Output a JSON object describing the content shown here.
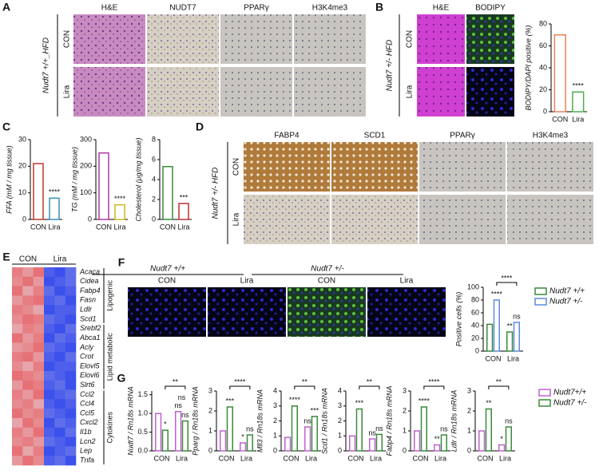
{
  "figure": {
    "A": {
      "label": "A",
      "row_title": "Nudt7 +/+_HFD",
      "columns": [
        "H&E",
        "NUDT7",
        "PPARγ",
        "H3K4me3"
      ],
      "rows": [
        "CON",
        "Lira"
      ]
    },
    "B": {
      "label": "B",
      "row_title": "Nudt7 +/- HFD",
      "columns": [
        "H&E",
        "BODIPY"
      ],
      "rows": [
        "CON",
        "Lira"
      ]
    },
    "C": {
      "label": "C"
    },
    "D": {
      "label": "D",
      "row_title": "Nudt7 +/- HFD",
      "columns": [
        "FABP4",
        "SCD1",
        "PPARγ",
        "H3K4me3"
      ],
      "rows": [
        "CON",
        "Lira"
      ]
    },
    "E": {
      "label": "E",
      "groups": [
        "CON",
        "Lira"
      ],
      "genes": [
        "Acaca",
        "Cidea",
        "Fabp4",
        "Fasn",
        "Ldlr",
        "Scd1",
        "Srebf2",
        "Abca1",
        "Acly",
        "Crot",
        "Elovl5",
        "Elovl6",
        "Slrt6",
        "Ccl2",
        "Ccl4",
        "Ccl5",
        "Cxcl2",
        "Il1b",
        "Lcn2",
        "Lep",
        "Tnfa"
      ],
      "categories": [
        "Lipogenic",
        "Lipid metabolic",
        "Cytokines"
      ],
      "values": [
        [
          0.8,
          0.6,
          0.9,
          -0.9,
          -1,
          -0.8
        ],
        [
          0.7,
          0.9,
          0.6,
          -1,
          -0.9,
          -0.8
        ],
        [
          0.9,
          0.5,
          0.8,
          -0.8,
          -1,
          -0.9
        ],
        [
          0.6,
          0.8,
          0.9,
          -0.9,
          -0.8,
          -1
        ],
        [
          0.8,
          0.7,
          0.5,
          -1,
          -0.9,
          -0.9
        ],
        [
          0.7,
          0.9,
          0.8,
          -0.8,
          -0.9,
          -1
        ],
        [
          0.5,
          0.8,
          0.7,
          -0.9,
          -1,
          -0.8
        ],
        [
          0.9,
          0.6,
          0.8,
          -1,
          -0.8,
          -0.9
        ],
        [
          0.6,
          0.7,
          0.9,
          -0.8,
          -0.9,
          -1
        ],
        [
          0.8,
          0.9,
          0.6,
          -0.9,
          -1,
          -0.8
        ],
        [
          0.7,
          0.5,
          0.8,
          -1,
          -0.9,
          -0.9
        ],
        [
          0.9,
          0.8,
          0.7,
          -0.8,
          -0.9,
          -1
        ],
        [
          0.6,
          0.9,
          0.8,
          -0.9,
          -0.8,
          -1
        ],
        [
          0.8,
          0.6,
          0.9,
          -1,
          -0.9,
          -0.8
        ],
        [
          0.7,
          0.8,
          0.5,
          -0.9,
          -1,
          -0.9
        ],
        [
          0.9,
          0.7,
          0.8,
          -0.8,
          -0.9,
          -1
        ],
        [
          0.5,
          0.9,
          0.7,
          -1,
          -0.8,
          -0.9
        ],
        [
          0.8,
          0.6,
          0.9,
          -0.9,
          -1,
          -0.8
        ],
        [
          0.7,
          0.8,
          0.6,
          -0.8,
          -0.9,
          -1
        ],
        [
          0.9,
          0.5,
          0.8,
          -1,
          -0.9,
          -0.8
        ],
        [
          0.6,
          0.9,
          0.7,
          -0.9,
          -0.8,
          -1
        ]
      ]
    },
    "F": {
      "label": "F",
      "genotypes": [
        "Nudt7 +/+",
        "Nudt7 +/-"
      ],
      "columns": [
        "CON",
        "Lira",
        "CON",
        "Lira"
      ]
    },
    "G": {
      "label": "G"
    }
  },
  "chart_data": [
    {
      "type": "bar",
      "ylabel": "BODIPY/DAPI positive (%)",
      "categories": [
        "CON",
        "Lira"
      ],
      "ylim": [
        0,
        80
      ],
      "yticks": [
        0,
        20,
        40,
        60,
        80
      ],
      "series": [
        {
          "values": [
            70,
            18
          ],
          "colors": [
            "#e8825a",
            "#4caf50"
          ]
        }
      ],
      "sig": {
        "last": "****"
      }
    },
    {
      "type": "bar",
      "ylabel": "FFA (mM / mg tissue)",
      "categories": [
        "CON",
        "Lira"
      ],
      "ylim": [
        0,
        30
      ],
      "yticks": [
        0,
        10,
        20,
        30
      ],
      "series": [
        {
          "values": [
            21,
            8
          ],
          "colors": [
            "#c0392b",
            "#3a8fb7"
          ]
        }
      ],
      "sig": {
        "last": "****"
      }
    },
    {
      "type": "bar",
      "ylabel": "TG (mM / mg tissue)",
      "categories": [
        "CON",
        "Lira"
      ],
      "ylim": [
        0,
        300
      ],
      "yticks": [
        0,
        100,
        200,
        300
      ],
      "series": [
        {
          "values": [
            250,
            55
          ],
          "colors": [
            "#b03aa0",
            "#c8b820"
          ]
        }
      ],
      "sig": {
        "last": "****"
      }
    },
    {
      "type": "bar",
      "ylabel": "Cholesterol (μg/mg tissue)",
      "categories": [
        "CON",
        "Lira"
      ],
      "ylim": [
        0,
        8
      ],
      "yticks": [
        0,
        2,
        4,
        6,
        8
      ],
      "series": [
        {
          "values": [
            5.3,
            1.6
          ],
          "colors": [
            "#3a8a3a",
            "#c03030"
          ]
        }
      ],
      "sig": {
        "last": "***"
      }
    },
    {
      "type": "bar",
      "ylabel": "Positive cells (%)",
      "categories": [
        "CON",
        "Lira"
      ],
      "ylim": [
        0,
        100
      ],
      "yticks": [
        0,
        20,
        40,
        60,
        80,
        100
      ],
      "series": [
        {
          "name": "Nudt7 +/+",
          "color": "#3a8a3a",
          "values": [
            42,
            30
          ]
        },
        {
          "name": "Nudt7 +/-",
          "color": "#5a8ae0",
          "values": [
            80,
            45
          ]
        }
      ],
      "sig": {
        "con_het": "****",
        "lira_wt": "**",
        "lira_het": "ns",
        "top": "****"
      }
    },
    {
      "type": "bar",
      "ylabel": "Nudt7 / Rn18s mRNA",
      "categories": [
        "CON",
        "Lira"
      ],
      "ylim": [
        0,
        1.6
      ],
      "yticks": [
        {
          "value": 0,
          "label": "0.0"
        },
        0.5,
        {
          "value": 1,
          "label": "1.0"
        },
        1.5
      ],
      "series": [
        {
          "name": "Nudt7+/+",
          "color": "#c060d0",
          "values": [
            1.0,
            1.05
          ]
        },
        {
          "name": "Nudt7 +/-",
          "color": "#3a8a3a",
          "values": [
            0.55,
            0.8
          ]
        }
      ],
      "sig": {
        "con_het": "*",
        "lira_wt": "ns",
        "lira_het": "ns",
        "between": "ns",
        "top": "**"
      }
    },
    {
      "type": "bar",
      "ylabel": "Pparg / Rn18s mRNA",
      "categories": [
        "CON",
        "Lira"
      ],
      "ylim": [
        0,
        3
      ],
      "yticks": [
        0,
        1,
        2,
        3
      ],
      "series": [
        {
          "color": "#c060d0",
          "values": [
            1.0,
            0.4
          ]
        },
        {
          "color": "#3a8a3a",
          "values": [
            2.2,
            0.8
          ]
        }
      ],
      "sig": {
        "con_het": "***",
        "lira_wt": "*",
        "lira_het": "ns",
        "top": "****"
      }
    },
    {
      "type": "bar",
      "ylabel": "Mll3 / Rn18s mRNA",
      "categories": [
        "CON",
        "Lira"
      ],
      "ylim": [
        0,
        4
      ],
      "yticks": [
        0,
        1,
        2,
        3,
        4
      ],
      "series": [
        {
          "color": "#c060d0",
          "values": [
            0.9,
            1.6
          ]
        },
        {
          "color": "#3a8a3a",
          "values": [
            3.0,
            2.3
          ]
        }
      ],
      "sig": {
        "con_het": "****",
        "lira_wt": "ns",
        "lira_het": "***",
        "top": "**"
      }
    },
    {
      "type": "bar",
      "ylabel": "Scd1 / Rn18s mRNA",
      "categories": [
        "CON",
        "Lira"
      ],
      "ylim": [
        0,
        4
      ],
      "yticks": [
        0,
        1,
        2,
        3,
        4
      ],
      "series": [
        {
          "color": "#c060d0",
          "values": [
            1.0,
            0.8
          ]
        },
        {
          "color": "#3a8a3a",
          "values": [
            2.8,
            1.1
          ]
        }
      ],
      "sig": {
        "con_het": "***",
        "lira_wt": "ns",
        "lira_het": "ns",
        "top": "**"
      }
    },
    {
      "type": "bar",
      "ylabel": "Fabp4 / Rn18s mRNA",
      "categories": [
        "CON",
        "Lira"
      ],
      "ylim": [
        0,
        3
      ],
      "yticks": [
        0,
        1,
        2,
        3
      ],
      "series": [
        {
          "color": "#c060d0",
          "values": [
            1.0,
            0.3
          ]
        },
        {
          "color": "#3a8a3a",
          "values": [
            2.2,
            0.8
          ]
        }
      ],
      "sig": {
        "con_het": "****",
        "lira_wt": "**",
        "lira_het": "ns",
        "top": "****"
      }
    },
    {
      "type": "bar",
      "ylabel": "Ldlr / Rn18s mRNA",
      "categories": [
        "CON",
        "Lira"
      ],
      "ylim": [
        0,
        3
      ],
      "yticks": [
        0,
        1,
        2,
        3
      ],
      "series": [
        {
          "color": "#c060d0",
          "values": [
            1.0,
            0.3
          ]
        },
        {
          "color": "#3a8a3a",
          "values": [
            2.1,
            1.2
          ]
        }
      ],
      "sig": {
        "con_het": "**",
        "lira_wt": "*",
        "lira_het": "ns",
        "top": "**"
      }
    }
  ]
}
